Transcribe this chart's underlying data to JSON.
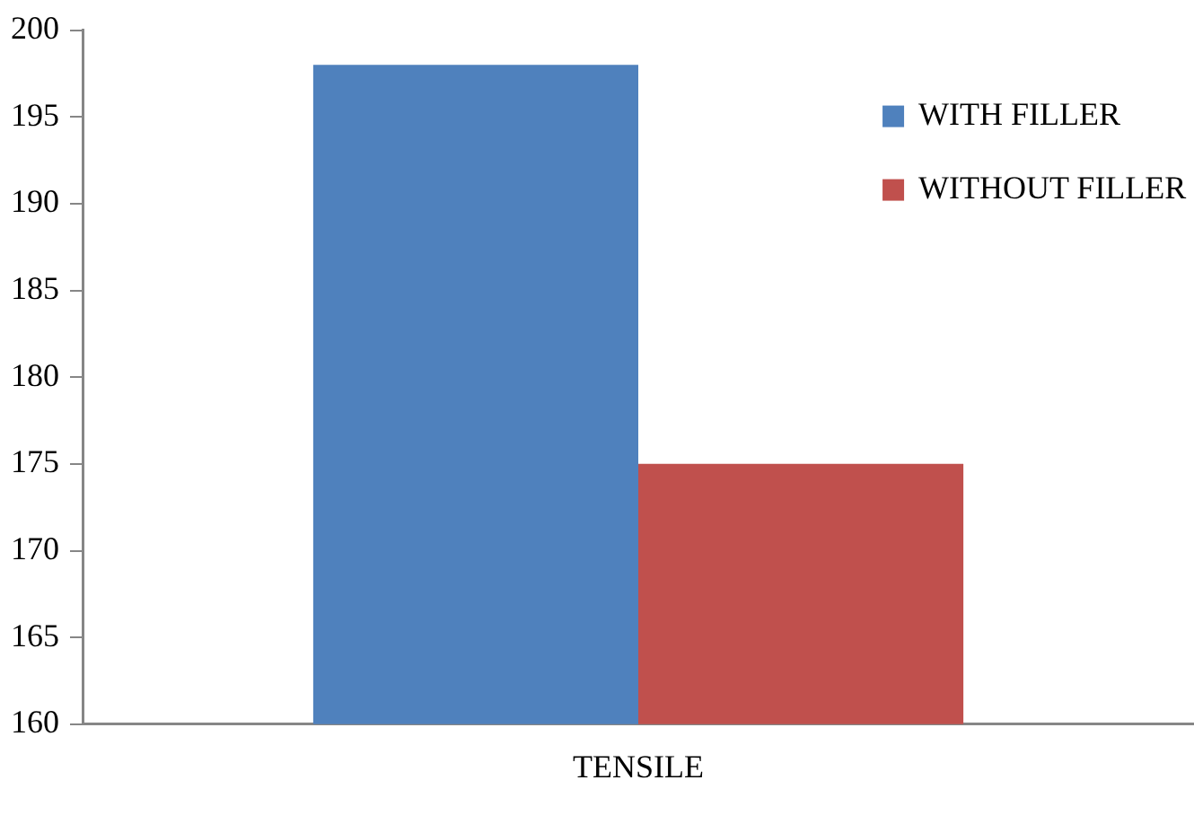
{
  "chart_data": {
    "type": "bar",
    "categories": [
      "TENSILE"
    ],
    "series": [
      {
        "name": "WITH FILLER",
        "color": "#4f81bd",
        "values": [
          198
        ]
      },
      {
        "name": "WITHOUT FILLER",
        "color": "#c0504d",
        "values": [
          175
        ]
      }
    ],
    "ylim": [
      160,
      200
    ],
    "yticks": [
      160,
      165,
      170,
      175,
      180,
      185,
      190,
      195,
      200
    ],
    "grid": false,
    "legend": "top right"
  }
}
